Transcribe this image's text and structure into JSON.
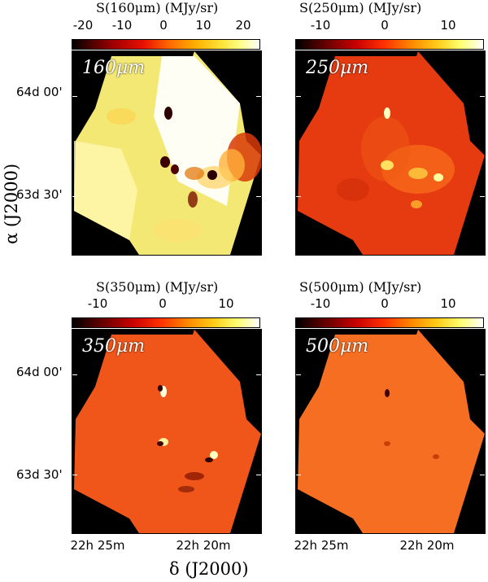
{
  "panels": [
    {
      "colorbar_title": "S(160μm)  (MJy/sr)",
      "ticks": [
        "-20",
        "-10",
        "0",
        "10",
        "20"
      ],
      "label": "160μm"
    },
    {
      "colorbar_title": "S(250μm)  (MJy/sr)",
      "ticks": [
        "-10",
        "0",
        "10"
      ],
      "label": "250μm"
    },
    {
      "colorbar_title": "S(350μm)  (MJy/sr)",
      "ticks": [
        "-10",
        "0",
        "10"
      ],
      "label": "350μm"
    },
    {
      "colorbar_title": "S(500μm)  (MJy/sr)",
      "ticks": [
        "-10",
        "0",
        "10"
      ],
      "label": "500μm"
    }
  ],
  "y_ticks": [
    "64d 00'",
    "63d 30'"
  ],
  "x_ticks": [
    "22h 25m",
    "22h 20m"
  ],
  "y_axis_title": "α (J2000)",
  "x_axis_title": "δ (J2000)",
  "colors": {
    "colormap": [
      "#000000",
      "#5a0000",
      "#c80000",
      "#ff4000",
      "#ff9a00",
      "#ffd21e",
      "#ffff60",
      "#ffffff"
    ]
  }
}
